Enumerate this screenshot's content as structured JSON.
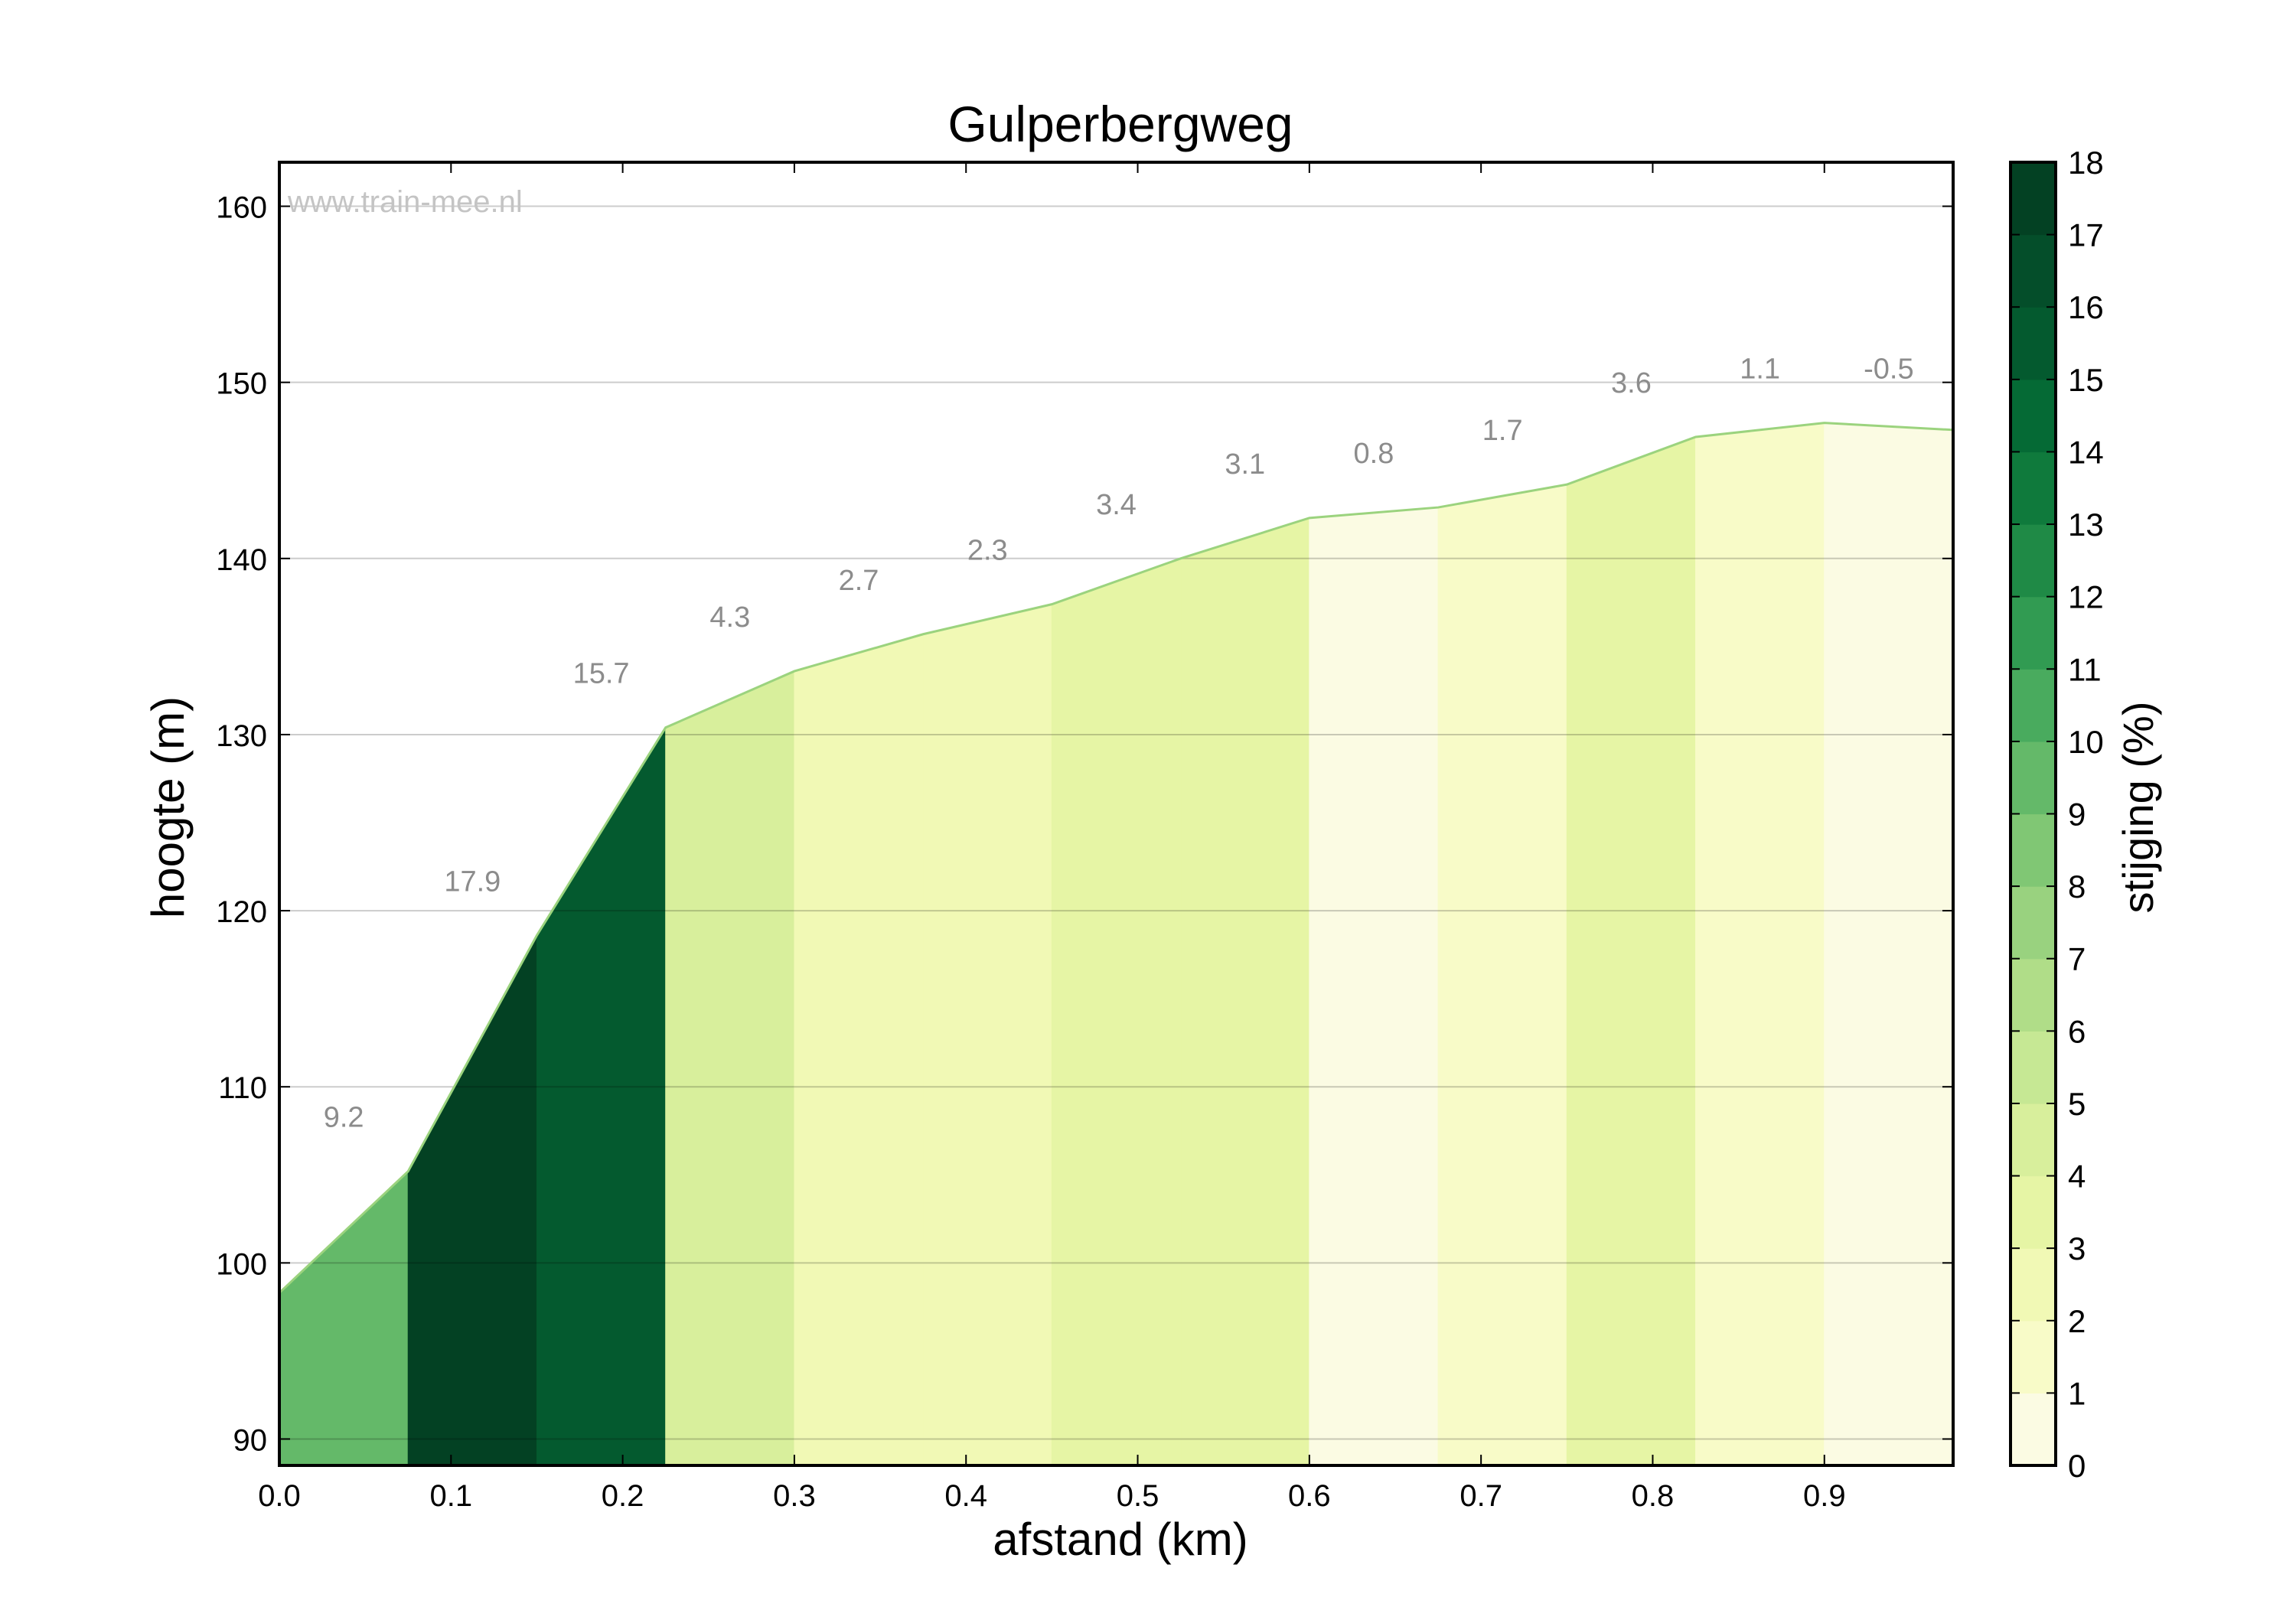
{
  "chart_data": {
    "type": "area",
    "title": "Gulperbergweg",
    "xlabel": "afstand (km)",
    "ylabel": "hoogte (m)",
    "watermark": "www.train-mee.nl",
    "xlim": [
      0.0,
      0.975
    ],
    "ylim": [
      88.5,
      162.5
    ],
    "xticks": [
      "0.0",
      "0.1",
      "0.2",
      "0.3",
      "0.4",
      "0.5",
      "0.6",
      "0.7",
      "0.8",
      "0.9"
    ],
    "yticks": [
      "90",
      "100",
      "110",
      "120",
      "130",
      "140",
      "150",
      "160"
    ],
    "profile": {
      "x": [
        0.0,
        0.075,
        0.15,
        0.225,
        0.3,
        0.375,
        0.45,
        0.525,
        0.6,
        0.675,
        0.75,
        0.825,
        0.9,
        0.975
      ],
      "y": [
        98.3,
        105.2,
        118.6,
        130.4,
        133.6,
        135.7,
        137.4,
        140.0,
        142.3,
        142.9,
        144.2,
        146.9,
        147.7,
        147.3
      ]
    },
    "segments": [
      {
        "x0": 0.0,
        "x1": 0.075,
        "gradient": 9.2,
        "label": "9.2"
      },
      {
        "x0": 0.075,
        "x1": 0.15,
        "gradient": 17.9,
        "label": "17.9"
      },
      {
        "x0": 0.15,
        "x1": 0.225,
        "gradient": 15.7,
        "label": "15.7"
      },
      {
        "x0": 0.225,
        "x1": 0.3,
        "gradient": 4.3,
        "label": "4.3"
      },
      {
        "x0": 0.3,
        "x1": 0.375,
        "gradient": 2.7,
        "label": "2.7"
      },
      {
        "x0": 0.375,
        "x1": 0.45,
        "gradient": 2.3,
        "label": "2.3"
      },
      {
        "x0": 0.45,
        "x1": 0.525,
        "gradient": 3.4,
        "label": "3.4"
      },
      {
        "x0": 0.525,
        "x1": 0.6,
        "gradient": 3.1,
        "label": "3.1"
      },
      {
        "x0": 0.6,
        "x1": 0.675,
        "gradient": 0.8,
        "label": "0.8"
      },
      {
        "x0": 0.675,
        "x1": 0.75,
        "gradient": 1.7,
        "label": "1.7"
      },
      {
        "x0": 0.75,
        "x1": 0.825,
        "gradient": 3.6,
        "label": "3.6"
      },
      {
        "x0": 0.825,
        "x1": 0.9,
        "gradient": 1.1,
        "label": "1.1"
      },
      {
        "x0": 0.9,
        "x1": 0.975,
        "gradient": -0.5,
        "label": "-0.5"
      }
    ],
    "colorbar": {
      "label": "stijging (%)",
      "range": [
        0,
        18
      ],
      "ticks": [
        "0",
        "1",
        "2",
        "3",
        "4",
        "5",
        "6",
        "7",
        "8",
        "9",
        "10",
        "11",
        "12",
        "13",
        "14",
        "15",
        "16",
        "17",
        "18"
      ],
      "colors": [
        "#fbfbe3",
        "#f8fbc8",
        "#f1f9b5",
        "#e6f5a5",
        "#d8ef9c",
        "#c6e894",
        "#b0dd88",
        "#99d27f",
        "#80c774",
        "#64b969",
        "#49ab5e",
        "#319b52",
        "#1f8a46",
        "#0f7a3c",
        "#056a35",
        "#045a2f",
        "#044e2a",
        "#034123"
      ]
    },
    "grid": true
  }
}
